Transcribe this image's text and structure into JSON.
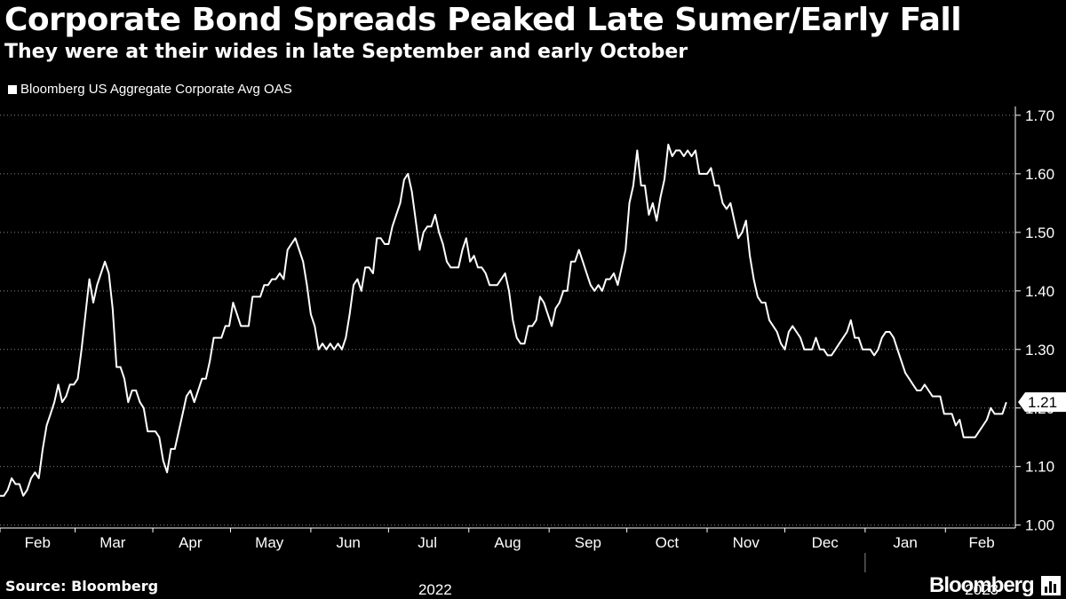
{
  "chart_data": {
    "type": "line",
    "title": "Corporate Bond Spreads Peaked Late Sumer/Early Fall",
    "subtitle": "They were at their wides in late September and early October",
    "series": [
      {
        "name": "Bloomberg US Aggregate Corporate Avg OAS",
        "color": "#ffffff",
        "last_value_label": "1.21",
        "points": [
          [
            0,
            1.05
          ],
          [
            1.5,
            1.05
          ],
          [
            3,
            1.06
          ],
          [
            4.5,
            1.08
          ],
          [
            6,
            1.07
          ],
          [
            7.5,
            1.07
          ],
          [
            9,
            1.05
          ],
          [
            10.5,
            1.06
          ],
          [
            12,
            1.08
          ],
          [
            13.5,
            1.09
          ],
          [
            15,
            1.08
          ],
          [
            16.5,
            1.13
          ],
          [
            18,
            1.17
          ],
          [
            19.5,
            1.19
          ],
          [
            21,
            1.21
          ],
          [
            22.5,
            1.24
          ],
          [
            24,
            1.21
          ],
          [
            25.5,
            1.22
          ],
          [
            27,
            1.24
          ],
          [
            28.5,
            1.24
          ],
          [
            30,
            1.25
          ],
          [
            31.5,
            1.3
          ],
          [
            33,
            1.36
          ],
          [
            34.5,
            1.42
          ],
          [
            36,
            1.38
          ],
          [
            37.5,
            1.41
          ],
          [
            39,
            1.43
          ],
          [
            40.5,
            1.45
          ],
          [
            42,
            1.43
          ],
          [
            43.5,
            1.37
          ],
          [
            45,
            1.27
          ],
          [
            46.5,
            1.27
          ],
          [
            48,
            1.25
          ],
          [
            49.5,
            1.21
          ],
          [
            51,
            1.23
          ],
          [
            52.5,
            1.23
          ],
          [
            54,
            1.21
          ],
          [
            55.5,
            1.2
          ],
          [
            57,
            1.16
          ],
          [
            58.5,
            1.16
          ],
          [
            60,
            1.16
          ],
          [
            61.5,
            1.15
          ],
          [
            63,
            1.11
          ],
          [
            64.5,
            1.09
          ],
          [
            66,
            1.13
          ],
          [
            67.5,
            1.13
          ],
          [
            69,
            1.16
          ],
          [
            70.5,
            1.19
          ],
          [
            72,
            1.22
          ],
          [
            73.5,
            1.23
          ],
          [
            75,
            1.21
          ],
          [
            76.5,
            1.23
          ],
          [
            78,
            1.25
          ],
          [
            79.5,
            1.25
          ],
          [
            81,
            1.28
          ],
          [
            82.5,
            1.32
          ],
          [
            84,
            1.32
          ],
          [
            85.5,
            1.32
          ],
          [
            87,
            1.34
          ],
          [
            88.5,
            1.34
          ],
          [
            90,
            1.38
          ],
          [
            91.5,
            1.36
          ],
          [
            93,
            1.34
          ],
          [
            94.5,
            1.34
          ],
          [
            96,
            1.34
          ],
          [
            97.5,
            1.39
          ],
          [
            99,
            1.39
          ],
          [
            100.5,
            1.39
          ],
          [
            102,
            1.41
          ],
          [
            103.5,
            1.41
          ],
          [
            105,
            1.42
          ],
          [
            106.5,
            1.42
          ],
          [
            108,
            1.43
          ],
          [
            109.5,
            1.42
          ],
          [
            111,
            1.47
          ],
          [
            112.5,
            1.48
          ],
          [
            114,
            1.49
          ],
          [
            115.5,
            1.47
          ],
          [
            117,
            1.45
          ],
          [
            118.5,
            1.41
          ],
          [
            120,
            1.36
          ],
          [
            121.5,
            1.34
          ],
          [
            123,
            1.3
          ],
          [
            124.5,
            1.31
          ],
          [
            126,
            1.3
          ],
          [
            127.5,
            1.31
          ],
          [
            129,
            1.3
          ],
          [
            130.5,
            1.31
          ],
          [
            132,
            1.3
          ],
          [
            133.5,
            1.32
          ],
          [
            135,
            1.36
          ],
          [
            136.5,
            1.41
          ],
          [
            138,
            1.42
          ],
          [
            139.5,
            1.4
          ],
          [
            141,
            1.44
          ],
          [
            142.5,
            1.44
          ],
          [
            144,
            1.43
          ],
          [
            145.5,
            1.49
          ],
          [
            147,
            1.49
          ],
          [
            148.5,
            1.48
          ],
          [
            150,
            1.48
          ],
          [
            151.5,
            1.51
          ],
          [
            153,
            1.53
          ],
          [
            154.5,
            1.55
          ],
          [
            156,
            1.59
          ],
          [
            157.5,
            1.6
          ],
          [
            159,
            1.57
          ],
          [
            160.5,
            1.52
          ],
          [
            162,
            1.47
          ],
          [
            163.5,
            1.5
          ],
          [
            165,
            1.51
          ],
          [
            166.5,
            1.51
          ],
          [
            168,
            1.53
          ],
          [
            169.5,
            1.5
          ],
          [
            171,
            1.48
          ],
          [
            172.5,
            1.45
          ],
          [
            174,
            1.44
          ],
          [
            175.5,
            1.44
          ],
          [
            177,
            1.44
          ],
          [
            178.5,
            1.47
          ],
          [
            180,
            1.49
          ],
          [
            181.5,
            1.45
          ],
          [
            183,
            1.46
          ],
          [
            184.5,
            1.44
          ],
          [
            186,
            1.44
          ],
          [
            187.5,
            1.43
          ],
          [
            189,
            1.41
          ],
          [
            190.5,
            1.41
          ],
          [
            192,
            1.41
          ],
          [
            193.5,
            1.42
          ],
          [
            195,
            1.43
          ],
          [
            196.5,
            1.4
          ],
          [
            198,
            1.35
          ],
          [
            199.5,
            1.32
          ],
          [
            201,
            1.31
          ],
          [
            202.5,
            1.31
          ],
          [
            204,
            1.34
          ],
          [
            205.5,
            1.34
          ],
          [
            207,
            1.35
          ],
          [
            208.5,
            1.39
          ],
          [
            210,
            1.38
          ],
          [
            211.5,
            1.36
          ],
          [
            213,
            1.34
          ],
          [
            214.5,
            1.37
          ],
          [
            216,
            1.38
          ],
          [
            217.5,
            1.4
          ],
          [
            219,
            1.4
          ],
          [
            220.5,
            1.45
          ],
          [
            222,
            1.45
          ],
          [
            223.5,
            1.47
          ],
          [
            225,
            1.45
          ],
          [
            226.5,
            1.43
          ],
          [
            228,
            1.41
          ],
          [
            229.5,
            1.4
          ],
          [
            231,
            1.41
          ],
          [
            232.5,
            1.4
          ],
          [
            234,
            1.42
          ],
          [
            235.5,
            1.42
          ],
          [
            237,
            1.43
          ],
          [
            238.5,
            1.41
          ],
          [
            240,
            1.44
          ],
          [
            241.5,
            1.47
          ],
          [
            243,
            1.55
          ],
          [
            244.5,
            1.58
          ],
          [
            246,
            1.64
          ],
          [
            247.5,
            1.58
          ],
          [
            249,
            1.58
          ],
          [
            250.5,
            1.53
          ],
          [
            252,
            1.55
          ],
          [
            253.5,
            1.52
          ],
          [
            255,
            1.56
          ],
          [
            256.5,
            1.59
          ],
          [
            258,
            1.65
          ],
          [
            259.5,
            1.63
          ],
          [
            261,
            1.64
          ],
          [
            262.5,
            1.64
          ],
          [
            264,
            1.63
          ],
          [
            265.5,
            1.64
          ],
          [
            267,
            1.63
          ],
          [
            268.5,
            1.64
          ],
          [
            270,
            1.6
          ],
          [
            271.5,
            1.6
          ],
          [
            273,
            1.6
          ],
          [
            274.5,
            1.61
          ],
          [
            276,
            1.58
          ],
          [
            277.5,
            1.58
          ],
          [
            279,
            1.55
          ],
          [
            280.5,
            1.54
          ],
          [
            282,
            1.55
          ],
          [
            283.5,
            1.52
          ],
          [
            285,
            1.49
          ],
          [
            286.5,
            1.5
          ],
          [
            288,
            1.52
          ],
          [
            289.5,
            1.46
          ],
          [
            291,
            1.42
          ],
          [
            292.5,
            1.39
          ],
          [
            294,
            1.38
          ],
          [
            295.5,
            1.38
          ],
          [
            297,
            1.35
          ],
          [
            298.5,
            1.34
          ],
          [
            300,
            1.33
          ],
          [
            301.5,
            1.31
          ],
          [
            303,
            1.3
          ],
          [
            304.5,
            1.33
          ],
          [
            306,
            1.34
          ],
          [
            307.5,
            1.33
          ],
          [
            309,
            1.32
          ],
          [
            310.5,
            1.3
          ],
          [
            312,
            1.3
          ],
          [
            313.5,
            1.3
          ],
          [
            315,
            1.32
          ],
          [
            316.5,
            1.3
          ],
          [
            318,
            1.3
          ],
          [
            319.5,
            1.29
          ],
          [
            321,
            1.29
          ],
          [
            322.5,
            1.3
          ],
          [
            324,
            1.31
          ],
          [
            325.5,
            1.32
          ],
          [
            327,
            1.33
          ],
          [
            328.5,
            1.35
          ],
          [
            330,
            1.32
          ],
          [
            331.5,
            1.32
          ],
          [
            333,
            1.3
          ],
          [
            334.5,
            1.3
          ],
          [
            336,
            1.3
          ],
          [
            337.5,
            1.29
          ],
          [
            339,
            1.3
          ],
          [
            340.5,
            1.32
          ],
          [
            342,
            1.33
          ],
          [
            343.5,
            1.33
          ],
          [
            345,
            1.32
          ],
          [
            346.5,
            1.3
          ],
          [
            348,
            1.28
          ],
          [
            349.5,
            1.26
          ],
          [
            351,
            1.25
          ],
          [
            352.5,
            1.24
          ],
          [
            354,
            1.23
          ],
          [
            355.5,
            1.23
          ],
          [
            357,
            1.24
          ],
          [
            358.5,
            1.23
          ],
          [
            360,
            1.22
          ],
          [
            361.5,
            1.22
          ],
          [
            363,
            1.22
          ],
          [
            364.5,
            1.19
          ],
          [
            366,
            1.19
          ],
          [
            367.5,
            1.19
          ],
          [
            369,
            1.17
          ],
          [
            370.5,
            1.18
          ],
          [
            372,
            1.15
          ],
          [
            373.5,
            1.15
          ],
          [
            375,
            1.15
          ],
          [
            376.5,
            1.15
          ],
          [
            378,
            1.16
          ],
          [
            379.5,
            1.17
          ],
          [
            381,
            1.18
          ],
          [
            382.5,
            1.2
          ],
          [
            384,
            1.19
          ],
          [
            385.5,
            1.19
          ],
          [
            387,
            1.19
          ],
          [
            388.5,
            1.21
          ]
        ]
      }
    ],
    "x_axis": {
      "months": [
        "Feb",
        "Mar",
        "Apr",
        "May",
        "Jun",
        "Jul",
        "Aug",
        "Sep",
        "Oct",
        "Nov",
        "Dec",
        "Jan",
        "Feb"
      ],
      "month_centers_day": [
        14.5,
        43.5,
        73.5,
        104,
        134.5,
        165,
        196,
        227,
        257.5,
        288,
        318.5,
        349.5,
        379
      ],
      "boundaries_day": [
        0,
        29,
        59,
        89,
        120,
        150,
        181,
        212,
        242,
        273,
        303,
        334,
        365
      ],
      "years": [
        {
          "label": "2022",
          "center_day": 168
        },
        {
          "label": "2023",
          "center_day": 379
        }
      ],
      "year_divider_day": 334,
      "range_day": [
        0,
        392
      ]
    },
    "y_axis": {
      "ticks": [
        "1.00",
        "1.10",
        "1.20",
        "1.30",
        "1.40",
        "1.50",
        "1.60",
        "1.70"
      ],
      "tick_values": [
        1.0,
        1.1,
        1.2,
        1.3,
        1.4,
        1.5,
        1.6,
        1.7
      ],
      "ylim": [
        0.995,
        1.715
      ],
      "side": "right",
      "gridlines": true
    },
    "legend_position": "top-left"
  },
  "source": "Source: Bloomberg",
  "brand": "Bloomberg"
}
